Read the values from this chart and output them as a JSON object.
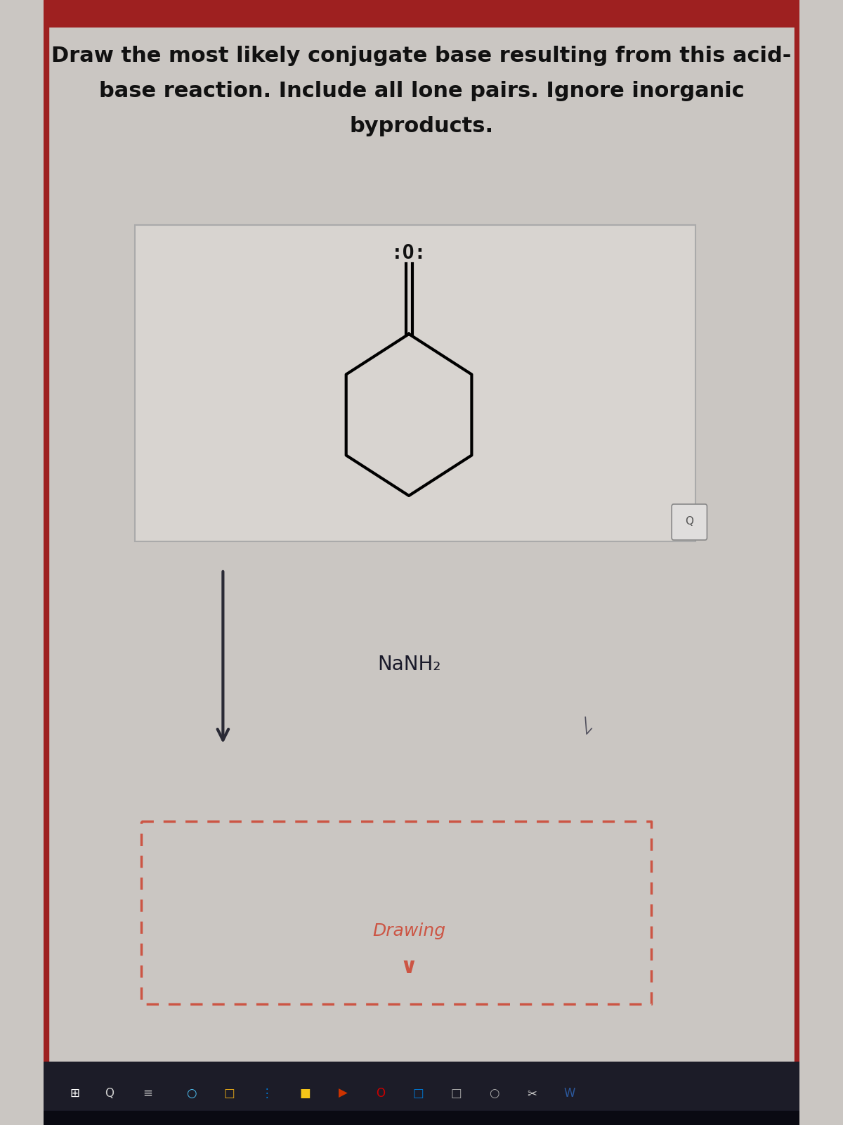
{
  "title_line1": "Draw the most likely conjugate base resulting from this acid-",
  "title_line2": "base reaction. Include all lone pairs. Ignore inorganic",
  "title_line3": "byproducts.",
  "background_color": "#cac6c2",
  "top_bar_color": "#9e2020",
  "molecule_box_bg": "#d8d4d0",
  "molecule_box_edge": "#aaaaaa",
  "drawing_box_border_color": "#cc5544",
  "reagent_label": "NaNH₂",
  "drawing_label": "Drawing",
  "arrow_color": "#2a2a35",
  "text_color": "#111111",
  "reagent_color": "#1a1a2a",
  "drawing_text_color": "#cc5544",
  "taskbar_color": "#1c1c28"
}
